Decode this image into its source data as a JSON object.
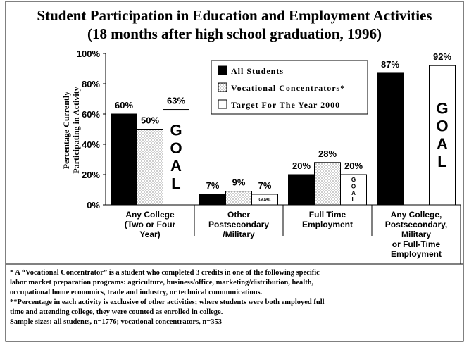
{
  "chart_data": {
    "type": "bar",
    "title": "Student Participation in Education and Employment Activities",
    "subtitle": "(18 months after high school graduation, 1996)",
    "y_label": [
      "Percentage Currently",
      "Participating in Activity"
    ],
    "categories": [
      "Any College\n(Two or Four\nYear)",
      "Other\nPostsecondary\n/Military",
      "Full Time\nEmployment",
      "Any College,\nPostsecondary,\nMilitary\nor Full-Time\nEmployment"
    ],
    "series": [
      {
        "name": "All Students",
        "color": "#000000",
        "values": [
          60,
          7,
          20,
          87
        ],
        "value_labels": [
          "60%",
          "7%",
          "20%",
          "87%"
        ]
      },
      {
        "name": "Vocational Concentrators*",
        "color": "#ffffff",
        "pattern": "dots",
        "values": [
          50,
          9,
          28,
          null
        ],
        "value_labels": [
          "50%",
          "9%",
          "28%",
          null
        ]
      },
      {
        "name": "Target For The Year 2000",
        "color": "#ffffff",
        "values": [
          63,
          7,
          20,
          92
        ],
        "value_labels": [
          "63%",
          "7%",
          "20%",
          "92%"
        ],
        "annotations": [
          "GOAL",
          "GOAL",
          "GOAL",
          "GOAL"
        ]
      }
    ],
    "ylim": [
      0,
      100
    ],
    "yticks": [
      {
        "value": 0,
        "label": "0%"
      },
      {
        "value": 20,
        "label": "20%"
      },
      {
        "value": 40,
        "label": "40%"
      },
      {
        "value": 60,
        "label": "60%"
      },
      {
        "value": 80,
        "label": "80%"
      },
      {
        "value": 100,
        "label": "100%"
      }
    ],
    "legend": "top",
    "notes": [
      "* A “Vocational Concentrator” is a student who completed 3 credits in one of the following specific",
      "labor market preparation programs:  agriculture, business/office, marketing/distribution, health,",
      "occupational home economics, trade and industry, or technical communications.",
      "**Percentage in each activity is exclusive of other activities; where students were both employed full",
      "time and attending college, they were counted as enrolled in college.",
      "Sample sizes:  all students, n=1776; vocational concentrators, n=353"
    ]
  }
}
